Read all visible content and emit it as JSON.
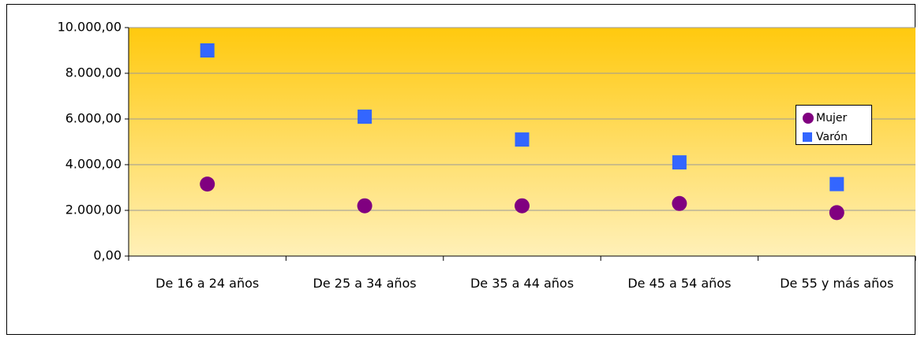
{
  "chart_data": {
    "type": "scatter",
    "categories": [
      "De 16 a 24 años",
      "De 25 a 34 años",
      "De 35 a 44 años",
      "De 45 a 54 años",
      "De 55 y más años"
    ],
    "series": [
      {
        "name": "Mujer",
        "color": "#800080",
        "marker": "circle",
        "values": [
          3150,
          2200,
          2200,
          2300,
          1900
        ]
      },
      {
        "name": "Varón",
        "color": "#3366ff",
        "marker": "square",
        "values": [
          9000,
          6100,
          5100,
          4100,
          3150
        ]
      }
    ],
    "ylim": [
      0,
      10000
    ],
    "yticks": [
      {
        "value": 0,
        "label": "0,00"
      },
      {
        "value": 2000,
        "label": "2.000,00"
      },
      {
        "value": 4000,
        "label": "4.000,00"
      },
      {
        "value": 6000,
        "label": "6.000,00"
      },
      {
        "value": 8000,
        "label": "8.000,00"
      },
      {
        "value": 10000,
        "label": "10.000,00"
      }
    ],
    "grid": true,
    "legend": "right"
  }
}
